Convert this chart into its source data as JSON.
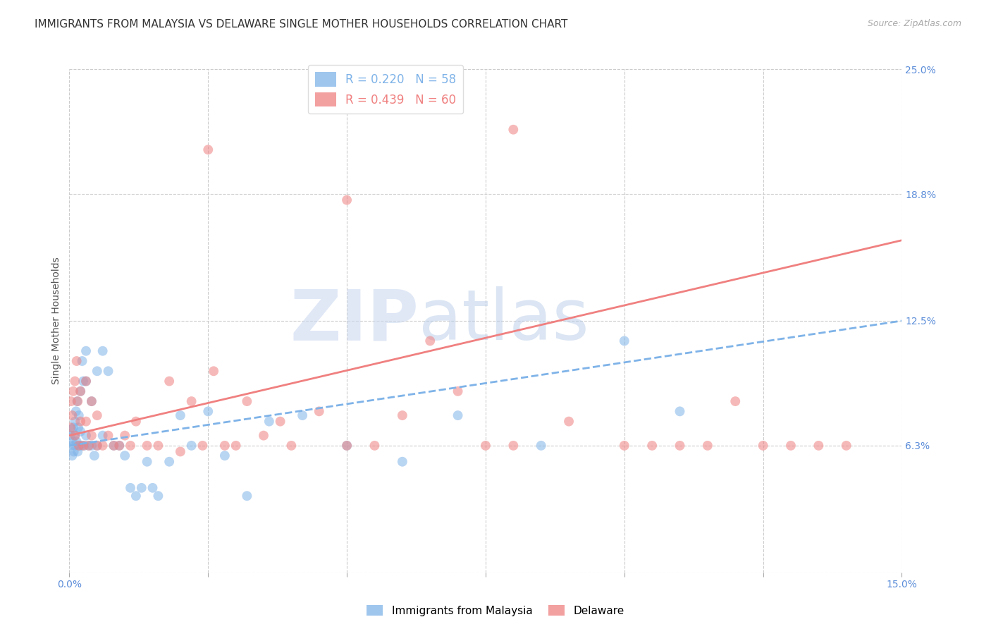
{
  "title": "IMMIGRANTS FROM MALAYSIA VS DELAWARE SINGLE MOTHER HOUSEHOLDS CORRELATION CHART",
  "source": "Source: ZipAtlas.com",
  "ylabel": "Single Mother Households",
  "xlim": [
    0.0,
    0.15
  ],
  "ylim": [
    0.0,
    0.25
  ],
  "ytick_labels": [
    "",
    "6.3%",
    "12.5%",
    "18.8%",
    "25.0%"
  ],
  "ytick_values": [
    0.0,
    0.063,
    0.125,
    0.188,
    0.25
  ],
  "xtick_values": [
    0.0,
    0.025,
    0.05,
    0.075,
    0.1,
    0.125,
    0.15
  ],
  "blue_scatter_x": [
    0.0002,
    0.0003,
    0.0004,
    0.0005,
    0.0006,
    0.0007,
    0.0008,
    0.0009,
    0.001,
    0.001,
    0.0012,
    0.0013,
    0.0014,
    0.0015,
    0.0016,
    0.0017,
    0.0018,
    0.002,
    0.002,
    0.0022,
    0.0023,
    0.0025,
    0.0027,
    0.003,
    0.003,
    0.003,
    0.0035,
    0.004,
    0.004,
    0.0045,
    0.005,
    0.005,
    0.006,
    0.006,
    0.007,
    0.008,
    0.009,
    0.01,
    0.011,
    0.012,
    0.013,
    0.014,
    0.015,
    0.016,
    0.018,
    0.02,
    0.022,
    0.025,
    0.028,
    0.032,
    0.036,
    0.042,
    0.05,
    0.06,
    0.07,
    0.085,
    0.1,
    0.11
  ],
  "blue_scatter_y": [
    0.068,
    0.063,
    0.071,
    0.058,
    0.065,
    0.072,
    0.06,
    0.063,
    0.075,
    0.068,
    0.08,
    0.065,
    0.085,
    0.06,
    0.072,
    0.078,
    0.063,
    0.09,
    0.07,
    0.063,
    0.105,
    0.095,
    0.063,
    0.11,
    0.095,
    0.068,
    0.063,
    0.063,
    0.085,
    0.058,
    0.1,
    0.063,
    0.11,
    0.068,
    0.1,
    0.063,
    0.063,
    0.058,
    0.042,
    0.038,
    0.042,
    0.055,
    0.042,
    0.038,
    0.055,
    0.078,
    0.063,
    0.08,
    0.058,
    0.038,
    0.075,
    0.078,
    0.063,
    0.055,
    0.078,
    0.063,
    0.115,
    0.08
  ],
  "pink_scatter_x": [
    0.0002,
    0.0003,
    0.0005,
    0.0007,
    0.001,
    0.001,
    0.0013,
    0.0015,
    0.0017,
    0.002,
    0.002,
    0.0025,
    0.003,
    0.003,
    0.0035,
    0.004,
    0.004,
    0.005,
    0.005,
    0.006,
    0.007,
    0.008,
    0.009,
    0.01,
    0.011,
    0.012,
    0.014,
    0.016,
    0.018,
    0.02,
    0.022,
    0.024,
    0.026,
    0.028,
    0.03,
    0.032,
    0.035,
    0.038,
    0.04,
    0.045,
    0.05,
    0.055,
    0.06,
    0.065,
    0.07,
    0.075,
    0.08,
    0.09,
    0.1,
    0.105,
    0.11,
    0.115,
    0.12,
    0.125,
    0.13,
    0.135,
    0.14,
    0.025,
    0.05,
    0.08
  ],
  "pink_scatter_y": [
    0.072,
    0.085,
    0.078,
    0.09,
    0.068,
    0.095,
    0.105,
    0.085,
    0.063,
    0.075,
    0.09,
    0.063,
    0.095,
    0.075,
    0.063,
    0.068,
    0.085,
    0.078,
    0.063,
    0.063,
    0.068,
    0.063,
    0.063,
    0.068,
    0.063,
    0.075,
    0.063,
    0.063,
    0.095,
    0.06,
    0.085,
    0.063,
    0.1,
    0.063,
    0.063,
    0.085,
    0.068,
    0.075,
    0.063,
    0.08,
    0.063,
    0.063,
    0.078,
    0.115,
    0.09,
    0.063,
    0.063,
    0.075,
    0.063,
    0.063,
    0.063,
    0.063,
    0.085,
    0.063,
    0.063,
    0.063,
    0.063,
    0.21,
    0.185,
    0.22
  ],
  "blue_line_x": [
    0.0,
    0.15
  ],
  "blue_line_y": [
    0.063,
    0.125
  ],
  "pink_line_x": [
    0.0,
    0.15
  ],
  "pink_line_y": [
    0.068,
    0.165
  ],
  "watermark_zip": "ZIP",
  "watermark_atlas": "atlas",
  "bg_color": "#ffffff",
  "scatter_alpha": 0.55,
  "scatter_size": 100,
  "blue_color": "#7fb3e8",
  "pink_color": "#f08080",
  "grid_color": "#cccccc",
  "axis_color": "#5b8dd9",
  "title_fontsize": 11,
  "label_fontsize": 10,
  "tick_fontsize": 10
}
